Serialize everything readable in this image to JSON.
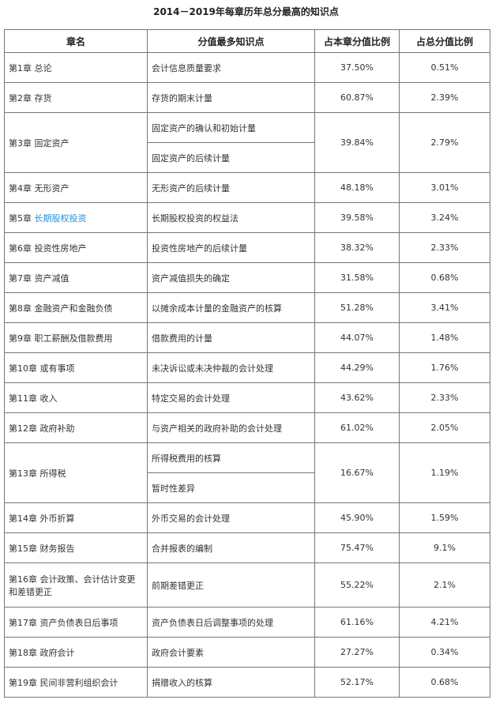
{
  "title": "2014－2019年每章历年总分最高的知识点",
  "table": {
    "headers": [
      "章名",
      "分值最多知识点",
      "占本章分值比例",
      "占总分值比例"
    ],
    "rows": [
      {
        "chapter": "第1章",
        "name": "总论",
        "points": [
          "会计信息质量要求"
        ],
        "chapter_ratio": "37.50%",
        "total_ratio": "0.51%"
      },
      {
        "chapter": "第2章",
        "name": "存货",
        "points": [
          "存货的期末计量"
        ],
        "chapter_ratio": "60.87%",
        "total_ratio": "2.39%"
      },
      {
        "chapter": "第3章",
        "name": "固定资产",
        "points": [
          "固定资产的确认和初始计量",
          "固定资产的后续计量"
        ],
        "chapter_ratio": "39.84%",
        "total_ratio": "2.79%"
      },
      {
        "chapter": "第4章",
        "name": "无形资产",
        "points": [
          "无形资产的后续计量"
        ],
        "chapter_ratio": "48.18%",
        "total_ratio": "3.01%"
      },
      {
        "chapter": "第5章",
        "name": "长期股权投资",
        "points": [
          "长期股权投资的权益法"
        ],
        "chapter_ratio": "39.58%",
        "total_ratio": "3.24%"
      },
      {
        "chapter": "第6章",
        "name": "投资性房地产",
        "points": [
          "投资性房地产的后续计量"
        ],
        "chapter_ratio": "38.32%",
        "total_ratio": "2.33%"
      },
      {
        "chapter": "第7章",
        "name": "资产减值",
        "points": [
          "资产减值损失的确定"
        ],
        "chapter_ratio": "31.58%",
        "total_ratio": "0.68%"
      },
      {
        "chapter": "第8章",
        "name": "金融资产和金融负债",
        "points": [
          "以摊余成本计量的金融资产的核算"
        ],
        "chapter_ratio": "51.28%",
        "total_ratio": "3.41%"
      },
      {
        "chapter": "第9章",
        "name": "职工薪酬及借款费用",
        "points": [
          "借款费用的计量"
        ],
        "chapter_ratio": "44.07%",
        "total_ratio": "1.48%"
      },
      {
        "chapter": "第10章",
        "name": "或有事项",
        "points": [
          "未决诉讼或未决仲裁的会计处理"
        ],
        "chapter_ratio": "44.29%",
        "total_ratio": "1.76%"
      },
      {
        "chapter": "第11章",
        "name": "收入",
        "points": [
          "特定交易的会计处理"
        ],
        "chapter_ratio": "43.62%",
        "total_ratio": "2.33%"
      },
      {
        "chapter": "第12章",
        "name": "政府补助",
        "points": [
          "与资产相关的政府补助的会计处理"
        ],
        "chapter_ratio": "61.02%",
        "total_ratio": "2.05%"
      },
      {
        "chapter": "第13章",
        "name": "所得税",
        "points": [
          "所得税费用的核算",
          "暂时性差异"
        ],
        "chapter_ratio": "16.67%",
        "total_ratio": "1.19%"
      },
      {
        "chapter": "第14章",
        "name": "外币折算",
        "points": [
          "外币交易的会计处理"
        ],
        "chapter_ratio": "45.90%",
        "total_ratio": "1.59%"
      },
      {
        "chapter": "第15章",
        "name": "财务报告",
        "points": [
          "合并报表的编制"
        ],
        "chapter_ratio": "75.47%",
        "total_ratio": "9.1%"
      },
      {
        "chapter": "第16章",
        "name": "会计政策、会计估计变更和差错更正",
        "points": [
          "前期差错更正"
        ],
        "chapter_ratio": "55.22%",
        "total_ratio": "2.1%"
      },
      {
        "chapter": "第17章",
        "name": "资产负债表日后事项",
        "points": [
          "资产负债表日后调整事项的处理"
        ],
        "chapter_ratio": "61.16%",
        "total_ratio": "4.21%"
      },
      {
        "chapter": "第18章",
        "name": "政府会计",
        "points": [
          "政府会计要素"
        ],
        "chapter_ratio": "27.27%",
        "total_ratio": "0.34%"
      },
      {
        "chapter": "第19章",
        "name": "民间非营利组织会计",
        "points": [
          "捐赠收入的核算"
        ],
        "chapter_ratio": "52.17%",
        "total_ratio": "0.68%"
      }
    ]
  }
}
